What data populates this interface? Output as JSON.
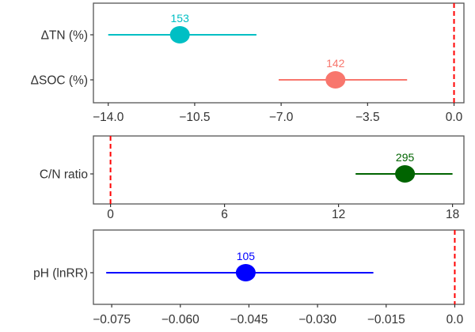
{
  "chart_data": [
    {
      "type": "forest",
      "xlim": [
        -14.6,
        0.4
      ],
      "ticks": [
        -14.0,
        -10.5,
        -7.0,
        -3.5,
        0.0
      ],
      "tick_labels": [
        "−14.0",
        "−10.5",
        "−7.0",
        "−3.5",
        "0.0"
      ],
      "reference_line": 0,
      "reference_color": "#ff0000",
      "rows": [
        {
          "label": "ΔTN (%)",
          "estimate": -11.1,
          "ci_low": -14.0,
          "ci_high": -8.0,
          "n_label": "153",
          "color": "#00bfc4"
        },
        {
          "label": "ΔSOC (%)",
          "estimate": -4.8,
          "ci_low": -7.1,
          "ci_high": -1.9,
          "n_label": "142",
          "color": "#f8766d"
        }
      ]
    },
    {
      "type": "forest",
      "xlim": [
        -0.9,
        18.6
      ],
      "ticks": [
        0,
        6,
        12,
        18
      ],
      "tick_labels": [
        "0",
        "6",
        "12",
        "18"
      ],
      "reference_line": 0,
      "reference_color": "#ff0000",
      "rows": [
        {
          "label": "C/N ratio",
          "estimate": 15.5,
          "ci_low": 12.9,
          "ci_high": 18.0,
          "n_label": "295",
          "color": "#006400"
        }
      ]
    },
    {
      "type": "forest",
      "xlim": [
        -0.079,
        0.002
      ],
      "ticks": [
        -0.075,
        -0.06,
        -0.045,
        -0.03,
        -0.015,
        0.0
      ],
      "tick_labels": [
        "−0.075",
        "−0.060",
        "−0.045",
        "−0.030",
        "−0.015",
        "0.0"
      ],
      "reference_line": 0,
      "reference_color": "#ff0000",
      "rows": [
        {
          "label": "pH (lnRR)",
          "estimate": -0.0457,
          "ci_low": -0.0762,
          "ci_high": -0.0178,
          "n_label": "105",
          "color": "#0000ff"
        }
      ]
    }
  ]
}
